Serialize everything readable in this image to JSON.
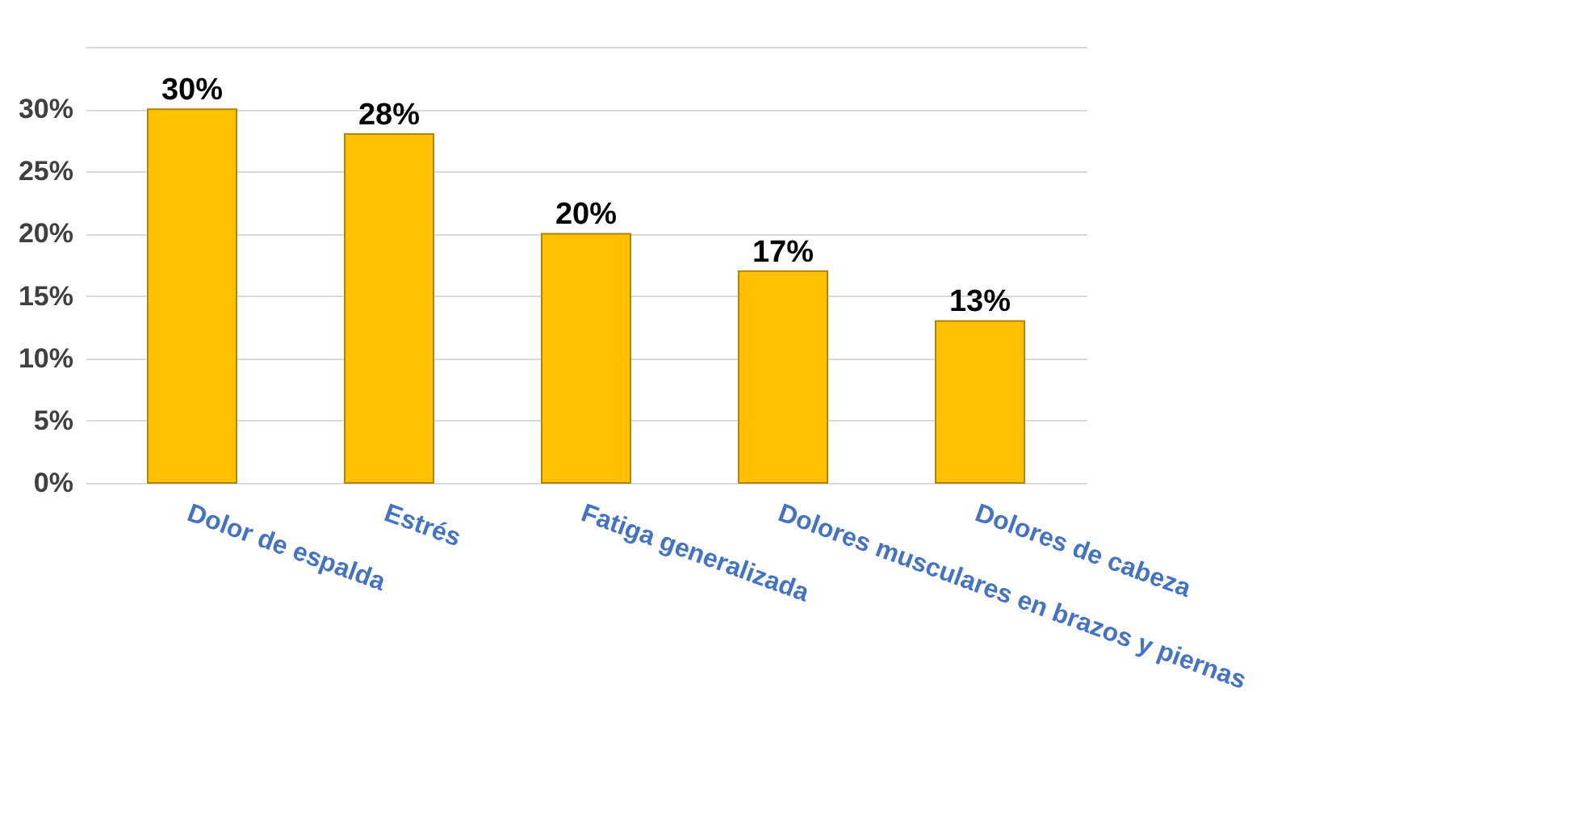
{
  "chart_data": {
    "type": "bar",
    "categories": [
      "Dolor de espalda",
      "Estrés",
      "Fatiga generalizada",
      "Dolores musculares en brazos y piernas",
      "Dolores de cabeza"
    ],
    "values": [
      30,
      28,
      20,
      17,
      13
    ],
    "color": "#ffc000",
    "value_labels": [
      "30%",
      "28%",
      "20%",
      "17%",
      "13%"
    ],
    "ylim": [
      0,
      35
    ],
    "yticks": [
      {
        "value": 0,
        "label": "0%"
      },
      {
        "value": 5,
        "label": "5%"
      },
      {
        "value": 10,
        "label": "10%"
      },
      {
        "value": 15,
        "label": "15%"
      },
      {
        "value": 20,
        "label": "20%"
      },
      {
        "value": 25,
        "label": "25%"
      },
      {
        "value": 30,
        "label": "30%"
      },
      {
        "value": 35,
        "label": null
      }
    ],
    "grid": "y"
  }
}
